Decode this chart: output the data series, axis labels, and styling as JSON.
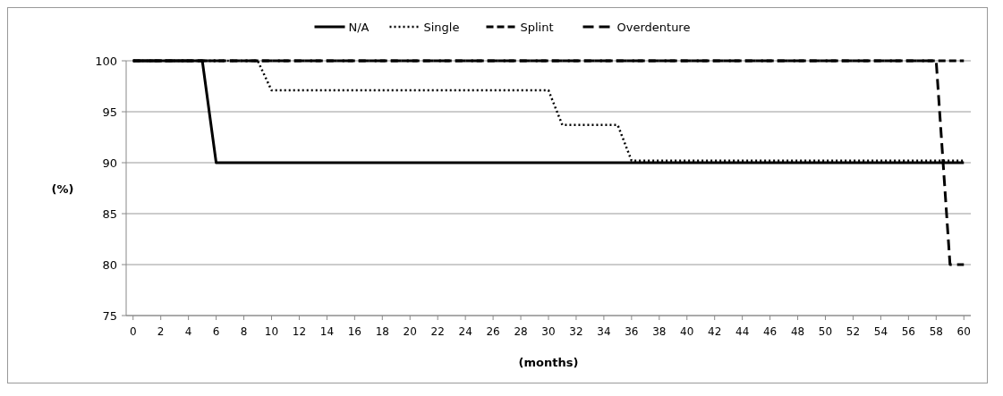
{
  "chart_data": {
    "type": "line",
    "xlabel": "(months)",
    "ylabel": "(%)",
    "x": [
      0,
      1,
      2,
      3,
      4,
      5,
      6,
      7,
      8,
      9,
      10,
      11,
      12,
      13,
      14,
      15,
      16,
      17,
      18,
      19,
      20,
      21,
      22,
      23,
      24,
      25,
      26,
      27,
      28,
      29,
      30,
      31,
      32,
      33,
      34,
      35,
      36,
      37,
      38,
      39,
      40,
      41,
      42,
      43,
      44,
      45,
      46,
      47,
      48,
      49,
      50,
      51,
      52,
      53,
      54,
      55,
      56,
      57,
      58,
      59,
      60
    ],
    "xlim": [
      -0.5,
      60.5
    ],
    "xticks": [
      0,
      2,
      4,
      6,
      8,
      10,
      12,
      14,
      16,
      18,
      20,
      22,
      24,
      26,
      28,
      30,
      32,
      34,
      36,
      38,
      40,
      42,
      44,
      46,
      48,
      50,
      52,
      54,
      56,
      58,
      60
    ],
    "series": [
      {
        "name": "N/A",
        "color": "#000000",
        "line_style": "solid",
        "values": [
          100,
          100,
          100,
          100,
          100,
          100,
          90,
          90,
          90,
          90,
          90,
          90,
          90,
          90,
          90,
          90,
          90,
          90,
          90,
          90,
          90,
          90,
          90,
          90,
          90,
          90,
          90,
          90,
          90,
          90,
          90,
          90,
          90,
          90,
          90,
          90,
          90,
          90,
          90,
          90,
          90,
          90,
          90,
          90,
          90,
          90,
          90,
          90,
          90,
          90,
          90,
          90,
          90,
          90,
          90,
          90,
          90,
          90,
          90,
          90,
          90
        ]
      },
      {
        "name": "Single",
        "color": "#000000",
        "line_style": "dotted",
        "values": [
          100,
          100,
          100,
          100,
          100,
          100,
          100,
          100,
          100,
          100,
          97.1,
          97.1,
          97.1,
          97.1,
          97.1,
          97.1,
          97.1,
          97.1,
          97.1,
          97.1,
          97.1,
          97.1,
          97.1,
          97.1,
          97.1,
          97.1,
          97.1,
          97.1,
          97.1,
          97.1,
          97.1,
          93.7,
          93.7,
          93.7,
          93.7,
          93.7,
          90.2,
          90.2,
          90.2,
          90.2,
          90.2,
          90.2,
          90.2,
          90.2,
          90.2,
          90.2,
          90.2,
          90.2,
          90.2,
          90.2,
          90.2,
          90.2,
          90.2,
          90.2,
          90.2,
          90.2,
          90.2,
          90.2,
          90.2,
          90.2,
          90.2
        ]
      },
      {
        "name": "Splint",
        "color": "#000000",
        "line_style": "dashed",
        "values": [
          100,
          100,
          100,
          100,
          100,
          100,
          100,
          100,
          100,
          100,
          100,
          100,
          100,
          100,
          100,
          100,
          100,
          100,
          100,
          100,
          100,
          100,
          100,
          100,
          100,
          100,
          100,
          100,
          100,
          100,
          100,
          100,
          100,
          100,
          100,
          100,
          100,
          100,
          100,
          100,
          100,
          100,
          100,
          100,
          100,
          100,
          100,
          100,
          100,
          100,
          100,
          100,
          100,
          100,
          100,
          100,
          100,
          100,
          100,
          100,
          100
        ]
      },
      {
        "name": "Overdenture",
        "color": "#000000",
        "line_style": "dashed",
        "values": [
          100,
          100,
          100,
          100,
          100,
          100,
          100,
          100,
          100,
          100,
          100,
          100,
          100,
          100,
          100,
          100,
          100,
          100,
          100,
          100,
          100,
          100,
          100,
          100,
          100,
          100,
          100,
          100,
          100,
          100,
          100,
          100,
          100,
          100,
          100,
          100,
          100,
          100,
          100,
          100,
          100,
          100,
          100,
          100,
          100,
          100,
          100,
          100,
          100,
          100,
          100,
          100,
          100,
          100,
          100,
          100,
          100,
          100,
          100,
          80,
          80
        ]
      }
    ],
    "ylim": [
      75,
      100
    ],
    "yticks": [
      75,
      80,
      85,
      90,
      95,
      100
    ],
    "grid": "y",
    "legend": "top"
  }
}
